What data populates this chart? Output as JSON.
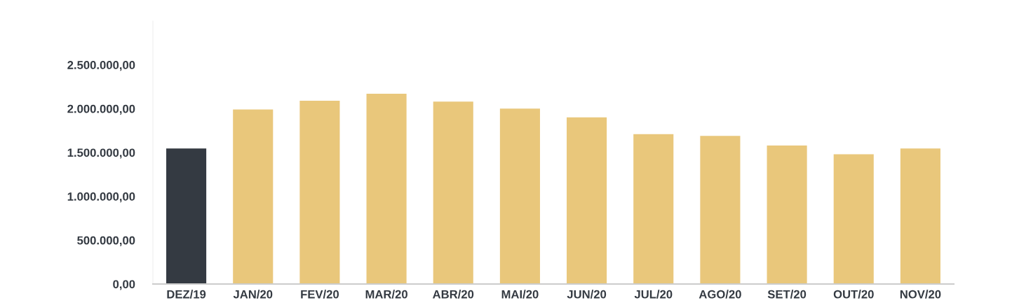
{
  "chart_data": {
    "type": "bar",
    "categories": [
      "DEZ/19",
      "JAN/20",
      "FEV/20",
      "MAR/20",
      "ABR/20",
      "MAI/20",
      "JUN/20",
      "JUL/20",
      "AGO/20",
      "SET/20",
      "OUT/20",
      "NOV/20"
    ],
    "values": [
      1545000,
      1990000,
      2090000,
      2170000,
      2080000,
      2000000,
      1900000,
      1710000,
      1690000,
      1580000,
      1480000,
      1545000
    ],
    "colors": [
      "#343a42",
      "#e9c77b",
      "#e9c77b",
      "#e9c77b",
      "#e9c77b",
      "#e9c77b",
      "#e9c77b",
      "#e9c77b",
      "#e9c77b",
      "#e9c77b",
      "#e9c77b",
      "#e9c77b"
    ],
    "ylim": [
      0,
      3000000
    ],
    "yticks": [
      {
        "value": 0,
        "label": "0,00"
      },
      {
        "value": 500000,
        "label": "500.000,00"
      },
      {
        "value": 1000000,
        "label": "1.000.000,00"
      },
      {
        "value": 1500000,
        "label": "1.500.000,00"
      },
      {
        "value": 2000000,
        "label": "2.000.000,00"
      },
      {
        "value": 2500000,
        "label": "2.500.000,00"
      }
    ],
    "grid": false
  }
}
